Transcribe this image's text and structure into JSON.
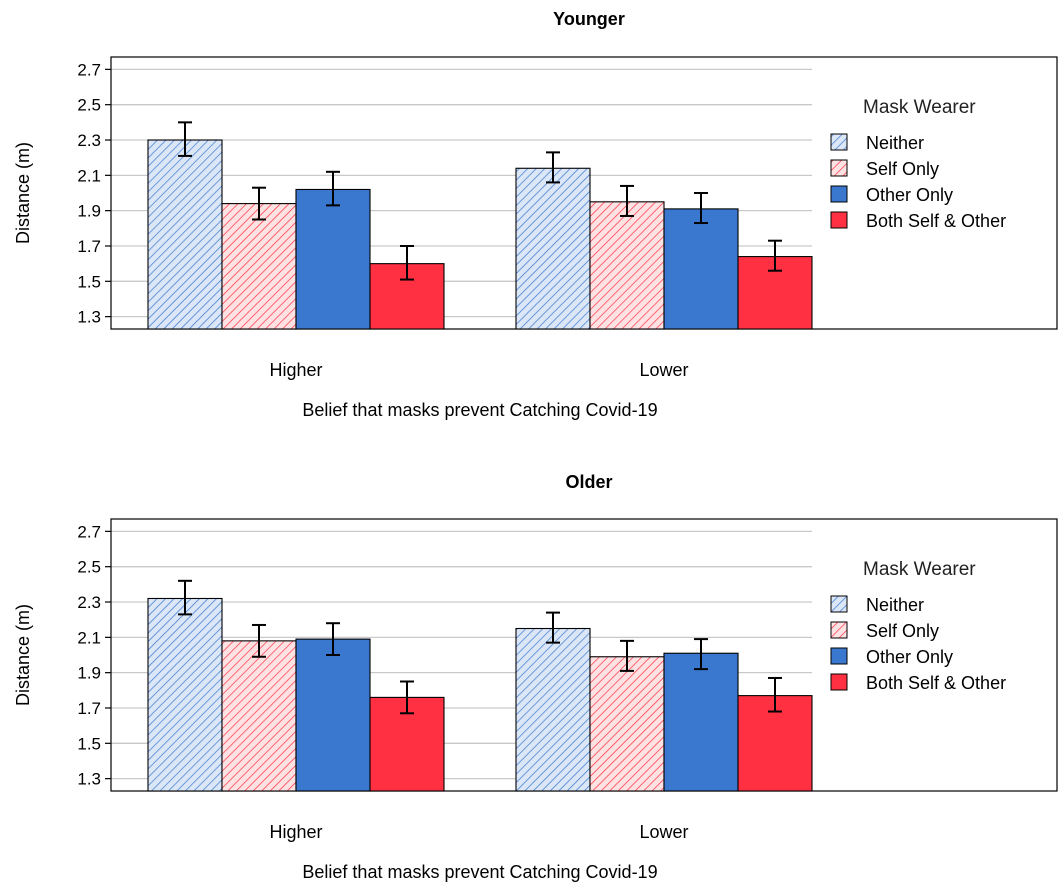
{
  "colors": {
    "blue": "#3a78cf",
    "red": "#ff3041",
    "grid": "#c9c9c9",
    "axis": "#000000"
  },
  "legend": {
    "title": "Mask Wearer",
    "entries": [
      {
        "label": "Neither",
        "color": "#3a78cf",
        "hatched": true
      },
      {
        "label": "Self Only",
        "color": "#ff3041",
        "hatched": true
      },
      {
        "label": "Other Only",
        "color": "#3a78cf",
        "hatched": false
      },
      {
        "label": "Both Self & Other",
        "color": "#ff3041",
        "hatched": false
      }
    ]
  },
  "chart_data": [
    {
      "type": "bar",
      "title": "Younger",
      "xlabel": "Belief that masks prevent Catching Covid-19",
      "ylabel": "Distance (m)",
      "categories": [
        "Higher",
        "Lower"
      ],
      "yticks": [
        1.3,
        1.5,
        1.7,
        1.9,
        2.1,
        2.3,
        2.5,
        2.7
      ],
      "ylim": [
        1.23,
        2.77
      ],
      "grid": true,
      "legend_position": "right",
      "series": [
        {
          "name": "Neither",
          "values": [
            2.3,
            2.14
          ],
          "err_low": [
            2.21,
            2.06
          ],
          "err_high": [
            2.4,
            2.23
          ]
        },
        {
          "name": "Self Only",
          "values": [
            1.94,
            1.95
          ],
          "err_low": [
            1.85,
            1.87
          ],
          "err_high": [
            2.03,
            2.04
          ]
        },
        {
          "name": "Other Only",
          "values": [
            2.02,
            1.91
          ],
          "err_low": [
            1.93,
            1.83
          ],
          "err_high": [
            2.12,
            2.0
          ]
        },
        {
          "name": "Both Self & Other",
          "values": [
            1.6,
            1.64
          ],
          "err_low": [
            1.51,
            1.56
          ],
          "err_high": [
            1.7,
            1.73
          ]
        }
      ]
    },
    {
      "type": "bar",
      "title": "Older",
      "xlabel": "Belief that masks prevent Catching Covid-19",
      "ylabel": "Distance (m)",
      "categories": [
        "Higher",
        "Lower"
      ],
      "yticks": [
        1.3,
        1.5,
        1.7,
        1.9,
        2.1,
        2.3,
        2.5,
        2.7
      ],
      "ylim": [
        1.23,
        2.77
      ],
      "grid": true,
      "legend_position": "right",
      "series": [
        {
          "name": "Neither",
          "values": [
            2.32,
            2.15
          ],
          "err_low": [
            2.23,
            2.07
          ],
          "err_high": [
            2.42,
            2.24
          ]
        },
        {
          "name": "Self Only",
          "values": [
            2.08,
            1.99
          ],
          "err_low": [
            1.99,
            1.91
          ],
          "err_high": [
            2.17,
            2.08
          ]
        },
        {
          "name": "Other Only",
          "values": [
            2.09,
            2.01
          ],
          "err_low": [
            2.0,
            1.92
          ],
          "err_high": [
            2.18,
            2.09
          ]
        },
        {
          "name": "Both Self & Other",
          "values": [
            1.76,
            1.77
          ],
          "err_low": [
            1.67,
            1.68
          ],
          "err_high": [
            1.85,
            1.87
          ]
        }
      ]
    }
  ]
}
